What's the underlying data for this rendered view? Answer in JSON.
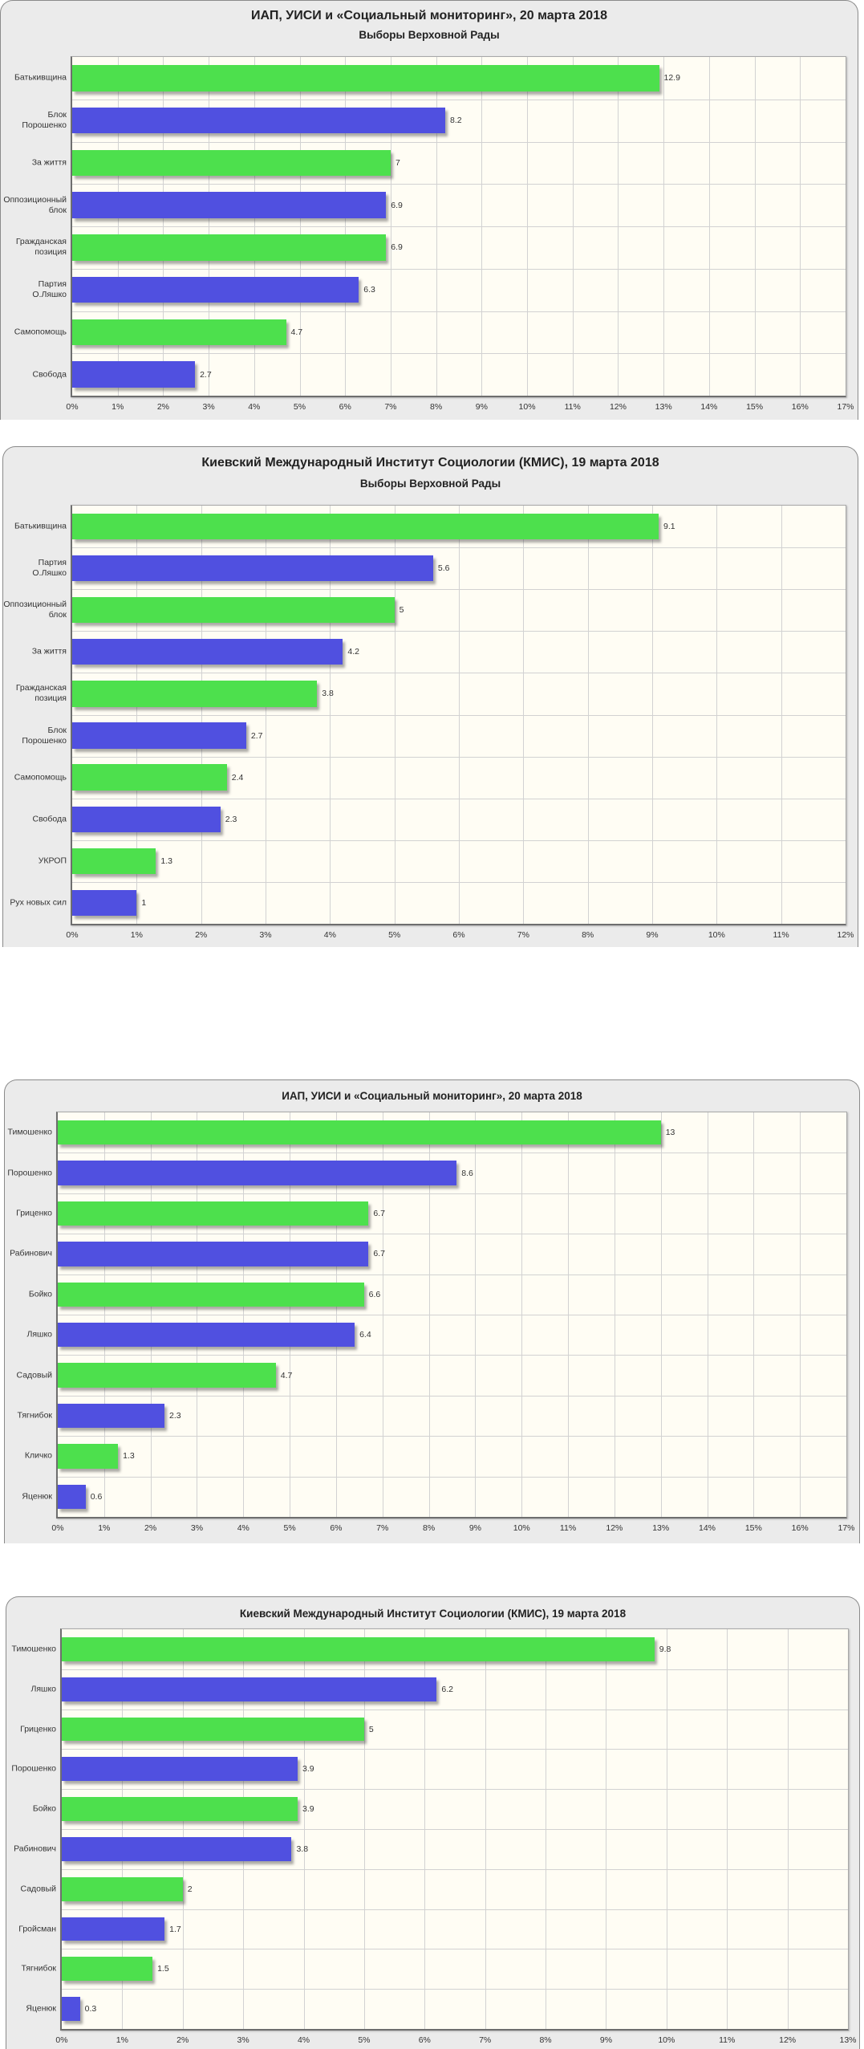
{
  "chart_data": [
    {
      "type": "bar",
      "orientation": "horizontal",
      "title": "ИАП, УИСИ и «Социальный мониторинг», 20 марта 2018",
      "subtitle": "Выборы Верховной Рады",
      "categories": [
        "Батькивщина",
        "Блок\nПорошенко",
        "За життя",
        "Оппозиционный\nблок",
        "Гражданская\nпозиция",
        "Партия\nО.Ляшко",
        "Самопомощь",
        "Свобода"
      ],
      "values": [
        12.9,
        8.2,
        7,
        6.9,
        6.9,
        6.3,
        4.7,
        2.7
      ],
      "colors": [
        "#4de04d",
        "#5050e0",
        "#4de04d",
        "#5050e0",
        "#4de04d",
        "#5050e0",
        "#4de04d",
        "#5050e0"
      ],
      "xlim": [
        0,
        17
      ],
      "xticks": [
        "0%",
        "1%",
        "2%",
        "3%",
        "4%",
        "5%",
        "6%",
        "7%",
        "8%",
        "9%",
        "10%",
        "11%",
        "12%",
        "13%",
        "14%",
        "15%",
        "16%",
        "17%"
      ],
      "grid": true
    },
    {
      "type": "bar",
      "orientation": "horizontal",
      "title": "Киевский Международный Институт Социологии (КМИС), 19 марта 2018",
      "subtitle": "Выборы Верховной Рады",
      "categories": [
        "Батькивщина",
        "Партия\nО.Ляшко",
        "Оппозиционный\nблок",
        "За життя",
        "Гражданская\nпозиция",
        "Блок\nПорошенко",
        "Самопомощь",
        "Свобода",
        "УКРОП",
        "Рух новых сил"
      ],
      "values": [
        9.1,
        5.6,
        5,
        4.2,
        3.8,
        2.7,
        2.4,
        2.3,
        1.3,
        1
      ],
      "colors": [
        "#4de04d",
        "#5050e0",
        "#4de04d",
        "#5050e0",
        "#4de04d",
        "#5050e0",
        "#4de04d",
        "#5050e0",
        "#4de04d",
        "#5050e0"
      ],
      "xlim": [
        0,
        12
      ],
      "xticks": [
        "0%",
        "1%",
        "2%",
        "3%",
        "4%",
        "5%",
        "6%",
        "7%",
        "8%",
        "9%",
        "10%",
        "11%",
        "12%"
      ],
      "grid": true
    },
    {
      "type": "bar",
      "orientation": "horizontal",
      "title": "ИАП, УИСИ и «Социальный мониторинг», 20 марта 2018",
      "categories": [
        "Тимошенко",
        "Порошенко",
        "Гриценко",
        "Рабинович",
        "Бойко",
        "Ляшко",
        "Садовый",
        "Тягнибок",
        "Кличко",
        "Яценюк"
      ],
      "values": [
        13,
        8.6,
        6.7,
        6.7,
        6.6,
        6.4,
        4.7,
        2.3,
        1.3,
        0.6
      ],
      "colors": [
        "#4de04d",
        "#5050e0",
        "#4de04d",
        "#5050e0",
        "#4de04d",
        "#5050e0",
        "#4de04d",
        "#5050e0",
        "#4de04d",
        "#5050e0"
      ],
      "xlim": [
        0,
        17
      ],
      "xticks": [
        "0%",
        "1%",
        "2%",
        "3%",
        "4%",
        "5%",
        "6%",
        "7%",
        "8%",
        "9%",
        "10%",
        "11%",
        "12%",
        "13%",
        "14%",
        "15%",
        "16%",
        "17%"
      ],
      "grid": true
    },
    {
      "type": "bar",
      "orientation": "horizontal",
      "title": "Киевский Международный Институт Социологии (КМИС), 19 марта 2018",
      "categories": [
        "Тимошенко",
        "Ляшко",
        "Гриценко",
        "Порошенко",
        "Бойко",
        "Рабинович",
        "Садовый",
        "Гройсман",
        "Тягнибок",
        "Яценюк"
      ],
      "values": [
        9.8,
        6.2,
        5,
        3.9,
        3.9,
        3.8,
        2,
        1.7,
        1.5,
        0.3
      ],
      "colors": [
        "#4de04d",
        "#5050e0",
        "#4de04d",
        "#5050e0",
        "#4de04d",
        "#5050e0",
        "#4de04d",
        "#5050e0",
        "#4de04d",
        "#5050e0"
      ],
      "xlim": [
        0,
        13
      ],
      "xticks": [
        "0%",
        "1%",
        "2%",
        "3%",
        "4%",
        "5%",
        "6%",
        "7%",
        "8%",
        "9%",
        "10%",
        "11%",
        "12%",
        "13%"
      ],
      "grid": true
    }
  ]
}
